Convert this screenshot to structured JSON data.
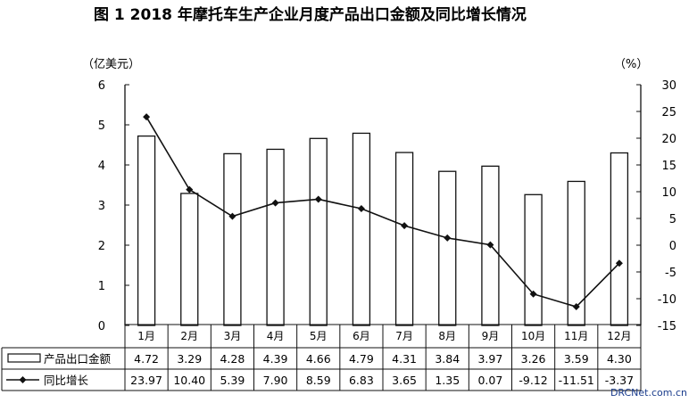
{
  "chart_data": {
    "type": "bar+line",
    "title": "图 1    2018 年摩托车生产企业月度产品出口金额及同比增长情况",
    "y_left_unit": "（亿美元）",
    "y_right_unit": "（%）",
    "y_left_range": [
      0,
      6
    ],
    "y_left_ticks": [
      "0",
      "1",
      "2",
      "3",
      "4",
      "5",
      "6"
    ],
    "y_right_range": [
      -15,
      30
    ],
    "y_right_ticks": [
      "-15",
      "-10",
      "-5",
      "0",
      "5",
      "10",
      "15",
      "20",
      "25",
      "30"
    ],
    "categories": [
      "1月",
      "2月",
      "3月",
      "4月",
      "5月",
      "6月",
      "7月",
      "8月",
      "9月",
      "10月",
      "11月",
      "12月"
    ],
    "series": [
      {
        "name": "产品出口金额",
        "type": "bar",
        "axis": "left",
        "values": [
          4.72,
          3.29,
          4.28,
          4.39,
          4.66,
          4.79,
          4.31,
          3.84,
          3.97,
          3.26,
          3.59,
          4.3
        ],
        "labels": [
          "4.72",
          "3.29",
          "4.28",
          "4.39",
          "4.66",
          "4.79",
          "4.31",
          "3.84",
          "3.97",
          "3.26",
          "3.59",
          "4.30"
        ]
      },
      {
        "name": "同比增长",
        "type": "line",
        "axis": "right",
        "values": [
          23.97,
          10.4,
          5.39,
          7.9,
          8.59,
          6.83,
          3.65,
          1.35,
          0.07,
          -9.12,
          -11.51,
          -3.37
        ],
        "labels": [
          "23.97",
          "10.40",
          "5.39",
          "7.90",
          "8.59",
          "6.83",
          "3.65",
          "1.35",
          "0.07",
          "-9.12",
          "-11.51",
          "-3.37"
        ]
      }
    ],
    "legend": "table-below",
    "grid": false
  },
  "watermark": "DRCNet.com.cn",
  "colors": {
    "ink": "#111111",
    "bar_fill": "#ffffff",
    "watermark": "#1a3c8c"
  }
}
